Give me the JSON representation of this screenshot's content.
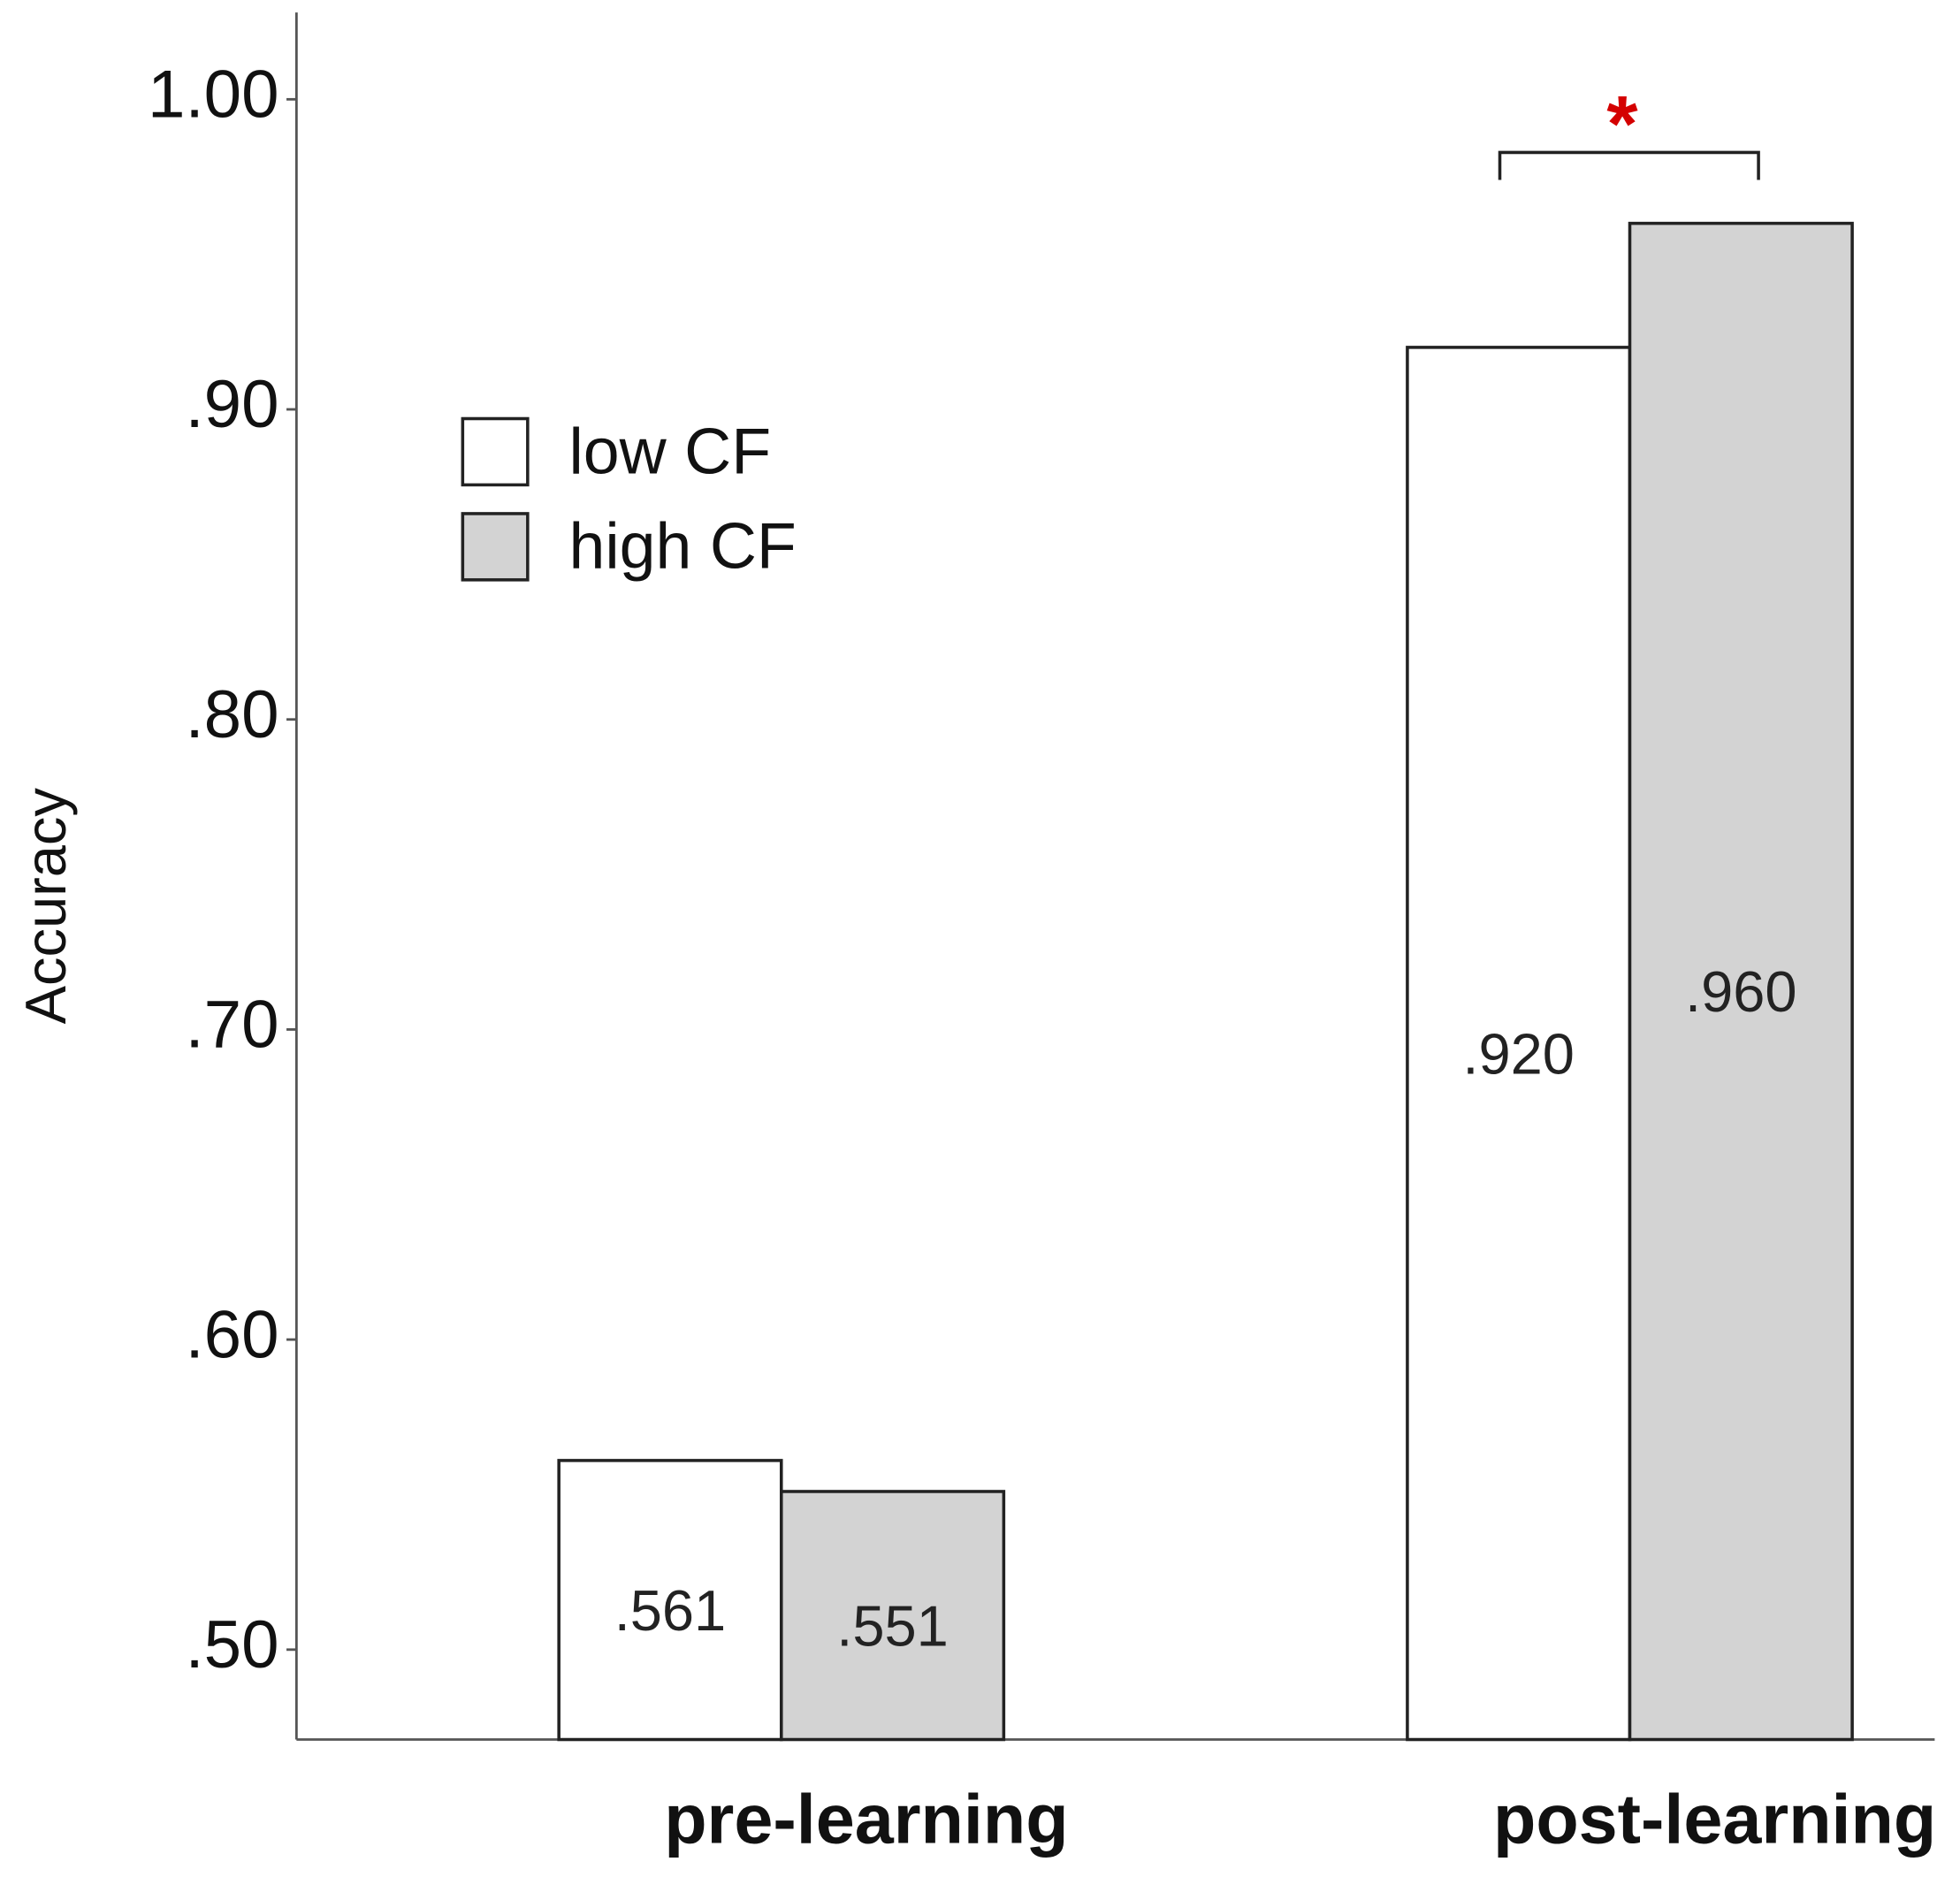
{
  "chart_data": {
    "type": "bar",
    "y_label": "Accuracy",
    "categories": [
      "pre-learning",
      "post-learning"
    ],
    "series": [
      {
        "name": "low CF",
        "color": "#ffffff",
        "values": [
          0.561,
          0.92
        ],
        "value_labels": [
          ".561",
          ".920"
        ]
      },
      {
        "name": "high CF",
        "color": "#d3d3d3",
        "values": [
          0.551,
          0.96
        ],
        "value_labels": [
          ".551",
          ".960"
        ]
      }
    ],
    "ylim": [
      0.471,
      1.028
    ],
    "yticks": [
      {
        "value": 0.5,
        "label": ".50"
      },
      {
        "value": 0.6,
        "label": ".60"
      },
      {
        "value": 0.7,
        "label": ".70"
      },
      {
        "value": 0.8,
        "label": ".80"
      },
      {
        "value": 0.9,
        "label": ".90"
      },
      {
        "value": 1.0,
        "label": "1.00"
      }
    ],
    "annotation": "*"
  }
}
